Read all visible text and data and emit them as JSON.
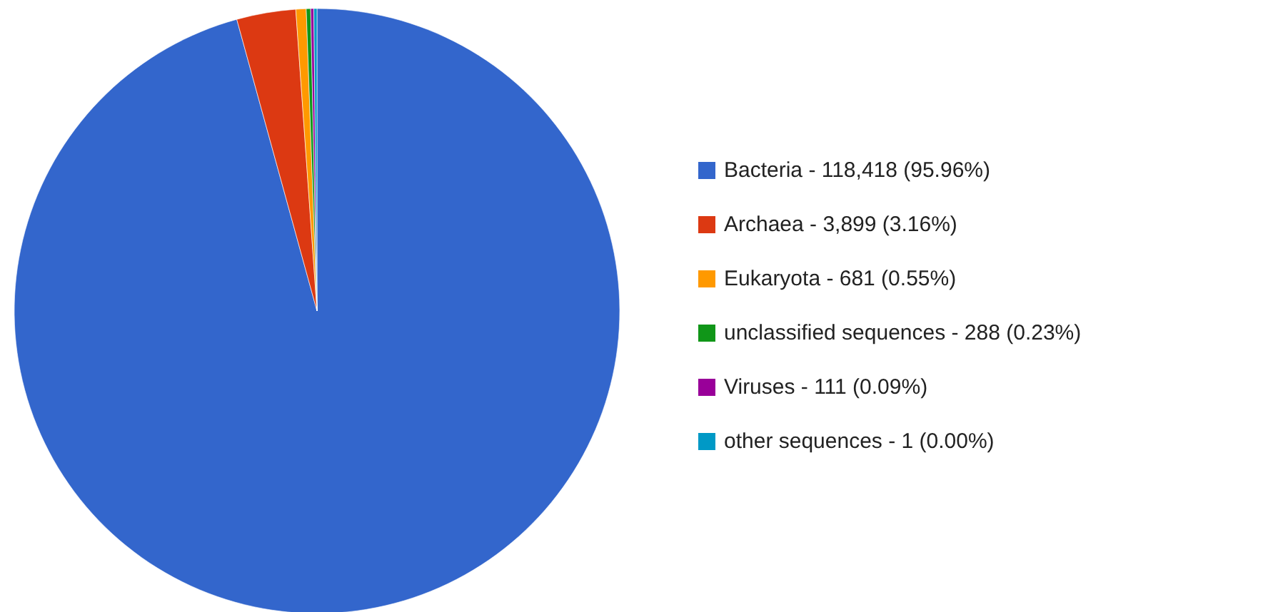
{
  "chart_data": {
    "type": "pie",
    "categories": [
      "Bacteria",
      "Archaea",
      "Eukaryota",
      "unclassified sequences",
      "Viruses",
      "other sequences"
    ],
    "values": [
      118418,
      3899,
      681,
      288,
      111,
      1
    ],
    "value_labels": [
      "118,418 (95.96%)",
      "3,899 (3.16%)",
      "681 (0.55%)",
      "288 (0.23%)",
      "111 (0.09%)",
      "1 (0.00%)"
    ],
    "colors": [
      "#3366cc",
      "#dc3912",
      "#ff9900",
      "#109618",
      "#990099",
      "#0099c6"
    ],
    "legend": "right"
  }
}
